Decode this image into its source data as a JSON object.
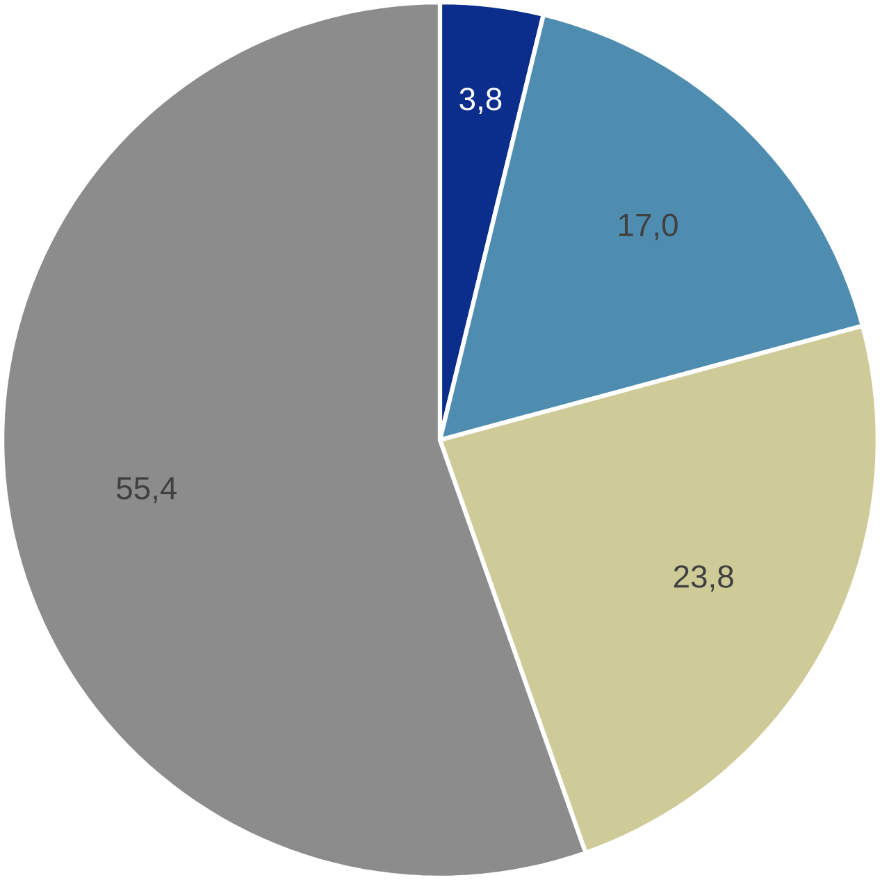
{
  "chart_data": {
    "type": "pie",
    "categories": [
      null,
      null,
      null,
      null
    ],
    "values": [
      3.8,
      17.0,
      23.8,
      55.4
    ],
    "value_labels": [
      "3,8",
      "17,0",
      "23,8",
      "55,4"
    ],
    "colors": [
      "#0b2d8c",
      "#4f8db0",
      "#cfcb98",
      "#8c8c8c"
    ]
  }
}
